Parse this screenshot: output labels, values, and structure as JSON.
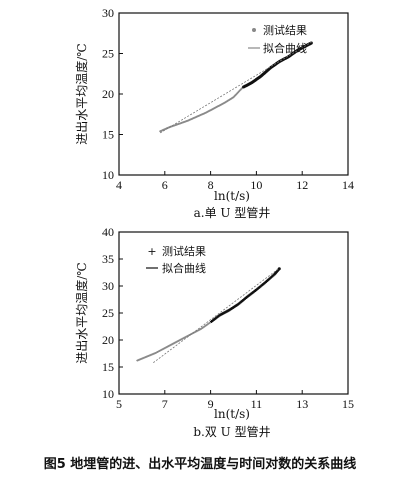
{
  "figure_caption": "图5  地埋管的进、出水平均温度与时间对数的关系曲线",
  "chart_data": [
    {
      "type": "scatter",
      "subtitle": "a.单 U 型管井",
      "xlabel": "ln(t/s)",
      "ylabel": "进出水平均温度/℃",
      "xlim": [
        4,
        14
      ],
      "ylim": [
        10,
        30
      ],
      "xticks": [
        "4",
        "6",
        "8",
        "10",
        "12",
        "14"
      ],
      "yticks": [
        "10",
        "15",
        "20",
        "25",
        "30"
      ],
      "legend": {
        "position": "top-right",
        "marker_label": "测试结果",
        "line_label": "拟合曲线"
      },
      "series": [
        {
          "name": "测试结果",
          "kind": "points",
          "x": [
            5.8,
            6.2,
            6.6,
            7.0,
            7.4,
            7.8,
            8.2,
            8.6,
            9.0,
            9.4,
            9.8,
            10.2,
            10.6,
            11.0,
            11.4,
            11.8,
            12.2,
            12.4
          ],
          "y": [
            15.4,
            15.9,
            16.3,
            16.7,
            17.2,
            17.7,
            18.3,
            18.9,
            19.6,
            20.8,
            21.4,
            22.2,
            23.2,
            24.0,
            24.6,
            25.4,
            26.0,
            26.3
          ]
        },
        {
          "name": "拟合曲线",
          "kind": "line",
          "x": [
            5.8,
            12.4
          ],
          "y": [
            15.2,
            26.4
          ]
        }
      ]
    },
    {
      "type": "scatter",
      "subtitle": "b.双 U 型管井",
      "xlabel": "ln(t/s)",
      "ylabel": "进出水平均温度/℃",
      "xlim": [
        5,
        15
      ],
      "ylim": [
        10,
        40
      ],
      "xticks": [
        "5",
        "7",
        "9",
        "11",
        "13",
        "15"
      ],
      "yticks": [
        "10",
        "15",
        "20",
        "25",
        "30",
        "35",
        "40"
      ],
      "legend": {
        "position": "top-left",
        "marker_label": "测试结果",
        "line_label": "拟合曲线"
      },
      "series": [
        {
          "name": "测试结果",
          "kind": "points",
          "x": [
            5.8,
            6.2,
            6.6,
            7.0,
            7.4,
            7.8,
            8.2,
            8.6,
            9.0,
            9.4,
            9.8,
            10.2,
            10.6,
            11.0,
            11.4,
            11.8,
            12.0
          ],
          "y": [
            16.2,
            16.9,
            17.6,
            18.5,
            19.4,
            20.3,
            21.2,
            22.1,
            23.3,
            24.6,
            25.5,
            26.6,
            28.0,
            29.3,
            30.7,
            32.2,
            33.2
          ]
        },
        {
          "name": "拟合曲线",
          "kind": "line",
          "x": [
            6.5,
            12.0
          ],
          "y": [
            15.8,
            33.3
          ]
        }
      ]
    }
  ]
}
